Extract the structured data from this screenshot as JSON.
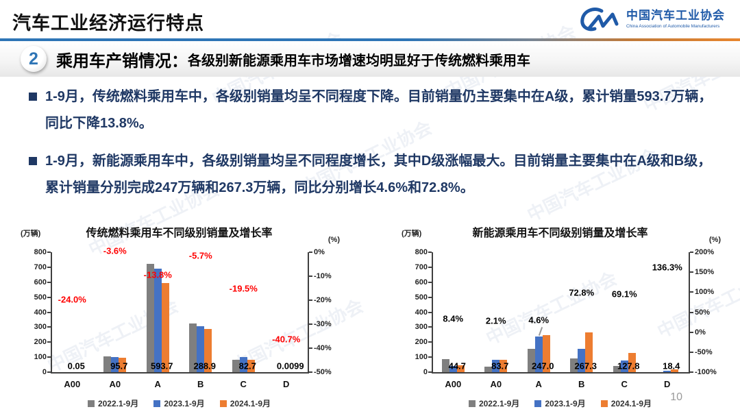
{
  "header": {
    "title": "汽车工业经济运行特点",
    "logo": {
      "org_cn": "中国汽车工业协会",
      "org_en": "China Association of Automobile Manufacturers"
    }
  },
  "banner": {
    "number": "2",
    "heading": "乘用车产销情况：",
    "subheading": "各级别新能源乘用车市场增速均明显好于传统燃料乘用车"
  },
  "bullets": [
    {
      "text": "1-9月，传统燃料乘用车中，各级别销量均呈不同程度下降。目前销量仍主要集中在A级，累计销量593.7万辆，同比下降13.8%。"
    },
    {
      "text": "1-9月，新能源乘用车中，各级别销量均呈不同程度增长，其中D级涨幅最大。目前销量主要集中在A级和B级，累计销量分别完成247万辆和267.3万辆，同比分别增长4.6%和72.8%。"
    }
  ],
  "watermark": {
    "text": "中国汽车工业协会"
  },
  "page_number": "10",
  "colors": {
    "accent_blue": "#2E75B6",
    "accent_orange": "#E8862E",
    "bar_gray": "#7F7F7F",
    "bar_blue": "#4472C4",
    "bar_orange": "#ED7D31",
    "negative_red": "#FF0000",
    "text_navy": "#1F3864",
    "logo_blue": "#1F5AA8"
  },
  "chart_data": [
    {
      "type": "bar",
      "title": "传统燃料乘用车不同级别销量及增长率",
      "left_axis_label": "(万辆)",
      "right_axis_label": "(%)",
      "categories": [
        "A00",
        "A0",
        "A",
        "B",
        "C",
        "D"
      ],
      "series": [
        {
          "name": "2022.1-9月",
          "color": "#7F7F7F",
          "values": [
            0.07,
            105,
            721,
            325,
            83,
            0.02
          ]
        },
        {
          "name": "2023.1-9月",
          "color": "#4472C4",
          "values": [
            0.066,
            99.3,
            688.7,
            306.4,
            102.7,
            0.0167
          ]
        },
        {
          "name": "2024.1-9月",
          "color": "#ED7D31",
          "values": [
            0.05,
            95.7,
            593.7,
            288.9,
            82.7,
            0.0099
          ]
        }
      ],
      "value_labels": [
        "0.05",
        "95.7",
        "593.7",
        "288.9",
        "82.7",
        "0.0099"
      ],
      "growth_labels": [
        "-24.0%",
        "-3.6%",
        "-13.8%",
        "-5.7%",
        "-19.5%",
        "-40.7%"
      ],
      "growth_values": [
        -24.0,
        -3.6,
        -13.8,
        -5.7,
        -19.5,
        -40.7
      ],
      "growth_color": "#FF0000",
      "left_ticks": [
        "800",
        "700",
        "600",
        "500",
        "400",
        "300",
        "200",
        "100",
        "0"
      ],
      "right_ticks": [
        "0%",
        "-10%",
        "-20%",
        "-30%",
        "-40%",
        "-50%"
      ],
      "left_max": 800,
      "right_range": [
        0,
        -50
      ],
      "leader_index": null,
      "legend_position": "bottom",
      "grid": false
    },
    {
      "type": "bar",
      "title": "新能源乘用车不同级别销量及增长率",
      "left_axis_label": "(万辆)",
      "right_axis_label": "(%)",
      "categories": [
        "A00",
        "A0",
        "A",
        "B",
        "C",
        "D"
      ],
      "series": [
        {
          "name": "2022.1-9月",
          "color": "#7F7F7F",
          "values": [
            89,
            38,
            155,
            93,
            43,
            1
          ]
        },
        {
          "name": "2023.1-9月",
          "color": "#4472C4",
          "values": [
            41.2,
            82,
            236.1,
            154.7,
            75.6,
            7.8
          ]
        },
        {
          "name": "2024.1-9月",
          "color": "#ED7D31",
          "values": [
            44.7,
            83.7,
            247.0,
            267.3,
            127.8,
            18.4
          ]
        }
      ],
      "value_labels": [
        "44.7",
        "83.7",
        "247.0",
        "267.3",
        "127.8",
        "18.4"
      ],
      "growth_labels": [
        "8.4%",
        "2.1%",
        "4.6%",
        "72.8%",
        "69.1%",
        "136.3%"
      ],
      "growth_values": [
        8.4,
        2.1,
        4.6,
        72.8,
        69.1,
        136.3
      ],
      "growth_color": "#000000",
      "left_ticks": [
        "800",
        "700",
        "600",
        "500",
        "400",
        "300",
        "200",
        "100",
        "0"
      ],
      "right_ticks": [
        "200%",
        "150%",
        "100%",
        "50%",
        "0%",
        "-50%",
        "-100%"
      ],
      "left_max": 800,
      "right_range": [
        200,
        -100
      ],
      "leader_index": 2,
      "legend_position": "bottom",
      "grid": false
    }
  ]
}
